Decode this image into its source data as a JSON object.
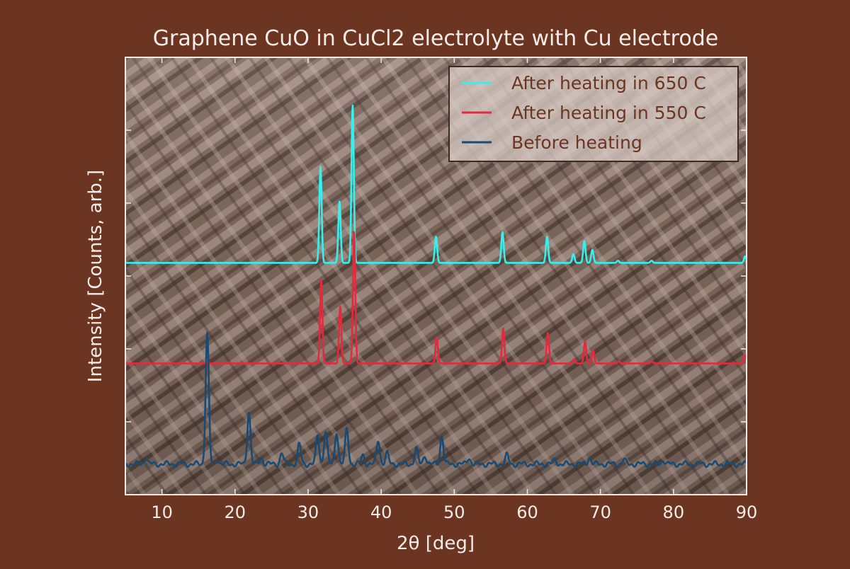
{
  "chart_data": {
    "type": "line",
    "title": "Graphene CuO in CuCl2 electrolyte with Cu electrode",
    "xlabel": "2θ [deg]",
    "ylabel": "Intensity [Counts, arb.]",
    "xlim": [
      5,
      90
    ],
    "ylim": [
      0,
      1
    ],
    "x_ticks": [
      10,
      20,
      30,
      40,
      50,
      60,
      70,
      80,
      90
    ],
    "y_tick_labels_shown": false,
    "grid": false,
    "legend_position": "top-right",
    "background": "SEM micrograph of rod-like crystal structures behind the plot area",
    "colors": {
      "page_background": "#6b3521",
      "axes_frame": "#f2e8e4",
      "text": "#f4ece8",
      "legend_text": "#6b3521"
    },
    "series": [
      {
        "name": "After heating in 650 C",
        "color": "#35f0ee",
        "baseline": 0.53,
        "peaks": [
          {
            "x": 31.7,
            "y": 0.75
          },
          {
            "x": 34.3,
            "y": 0.67
          },
          {
            "x": 36.1,
            "y": 0.89
          },
          {
            "x": 47.5,
            "y": 0.59
          },
          {
            "x": 56.6,
            "y": 0.6
          },
          {
            "x": 62.7,
            "y": 0.59
          },
          {
            "x": 66.3,
            "y": 0.55
          },
          {
            "x": 67.8,
            "y": 0.58
          },
          {
            "x": 68.9,
            "y": 0.56
          },
          {
            "x": 72.4,
            "y": 0.535
          },
          {
            "x": 77.0,
            "y": 0.535
          },
          {
            "x": 89.8,
            "y": 0.545
          }
        ]
      },
      {
        "name": "After heating in 550 C",
        "color": "#e8283c",
        "baseline": 0.3,
        "peaks": [
          {
            "x": 31.8,
            "y": 0.49
          },
          {
            "x": 34.4,
            "y": 0.43
          },
          {
            "x": 36.3,
            "y": 0.6
          },
          {
            "x": 47.6,
            "y": 0.36
          },
          {
            "x": 56.7,
            "y": 0.38
          },
          {
            "x": 62.8,
            "y": 0.37
          },
          {
            "x": 66.4,
            "y": 0.31
          },
          {
            "x": 67.9,
            "y": 0.35
          },
          {
            "x": 69.0,
            "y": 0.33
          },
          {
            "x": 72.5,
            "y": 0.305
          },
          {
            "x": 77.0,
            "y": 0.305
          },
          {
            "x": 89.8,
            "y": 0.32
          }
        ]
      },
      {
        "name": "Before heating",
        "color": "#184a76",
        "baseline": 0.07,
        "peaks": [
          {
            "x": 7.8,
            "y": 0.085
          },
          {
            "x": 16.2,
            "y": 0.37
          },
          {
            "x": 17.6,
            "y": 0.08
          },
          {
            "x": 21.9,
            "y": 0.19
          },
          {
            "x": 23.6,
            "y": 0.085
          },
          {
            "x": 26.4,
            "y": 0.095
          },
          {
            "x": 28.8,
            "y": 0.115
          },
          {
            "x": 31.3,
            "y": 0.135
          },
          {
            "x": 32.4,
            "y": 0.145
          },
          {
            "x": 33.9,
            "y": 0.145
          },
          {
            "x": 35.3,
            "y": 0.15
          },
          {
            "x": 37.5,
            "y": 0.09
          },
          {
            "x": 39.6,
            "y": 0.125
          },
          {
            "x": 40.8,
            "y": 0.095
          },
          {
            "x": 44.8,
            "y": 0.105
          },
          {
            "x": 46.0,
            "y": 0.09
          },
          {
            "x": 48.3,
            "y": 0.135
          },
          {
            "x": 52.0,
            "y": 0.085
          },
          {
            "x": 57.2,
            "y": 0.09
          },
          {
            "x": 63.8,
            "y": 0.08
          },
          {
            "x": 68.5,
            "y": 0.085
          },
          {
            "x": 73.2,
            "y": 0.08
          },
          {
            "x": 78.6,
            "y": 0.08
          }
        ]
      }
    ]
  }
}
